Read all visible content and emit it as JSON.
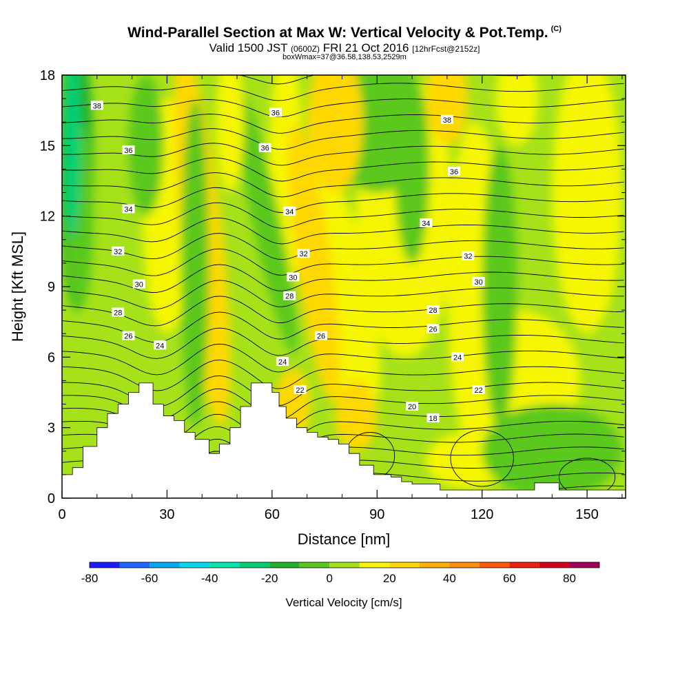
{
  "header": {
    "title": "Wind-Parallel Section at Max W: Vertical Velocity & Pot.Temp.",
    "copyright": "(C)",
    "valid_prefix": "Valid 1500 JST",
    "valid_utc": "(0600Z)",
    "valid_date": "FRI 21 Oct 2016",
    "forecast": "[12hrFcst@2152z]",
    "box_info": "boxWmax=37@36.58,138.53,2529m"
  },
  "chart_data": {
    "type": "heatmap",
    "xlabel": "Distance [nm]",
    "ylabel": "Height [Kft MSL]",
    "xlim": [
      0,
      161
    ],
    "ylim": [
      0,
      18
    ],
    "x_ticks": [
      "0",
      "30",
      "60",
      "90",
      "120",
      "150"
    ],
    "y_ticks": [
      "0",
      "3",
      "6",
      "9",
      "12",
      "15",
      "18"
    ],
    "grid": false,
    "colorbar": {
      "title": "Vertical Velocity [cm/s]",
      "tick_labels": [
        "-80",
        "-60",
        "-40",
        "-20",
        "0",
        "20",
        "40",
        "60",
        "80"
      ],
      "levels": [
        -80,
        -70,
        -60,
        -50,
        -40,
        -30,
        -20,
        -10,
        0,
        10,
        20,
        30,
        40,
        50,
        60,
        70,
        80,
        90
      ],
      "colors": [
        "#1c1cff",
        "#1f66ff",
        "#00aaf0",
        "#00d8f0",
        "#00e6b0",
        "#00d072",
        "#24b02c",
        "#5ac81e",
        "#a6e21a",
        "#f6f600",
        "#ffd800",
        "#ffb000",
        "#ff8c0a",
        "#ff5a0a",
        "#f02010",
        "#d4001c",
        "#a0005a",
        "#6a0a8c"
      ]
    },
    "terrain_kft": [
      [
        0,
        1.0
      ],
      [
        3,
        1.0
      ],
      [
        3,
        1.3
      ],
      [
        6,
        1.3
      ],
      [
        6,
        2.2
      ],
      [
        10,
        2.2
      ],
      [
        10,
        3.0
      ],
      [
        13,
        3.0
      ],
      [
        13,
        3.6
      ],
      [
        16,
        3.6
      ],
      [
        16,
        4.0
      ],
      [
        19,
        4.0
      ],
      [
        19,
        4.5
      ],
      [
        22,
        4.5
      ],
      [
        22,
        4.9
      ],
      [
        26,
        4.9
      ],
      [
        26,
        4.0
      ],
      [
        29,
        4.0
      ],
      [
        29,
        3.5
      ],
      [
        32,
        3.5
      ],
      [
        32,
        3.3
      ],
      [
        35,
        3.3
      ],
      [
        35,
        2.8
      ],
      [
        38,
        2.8
      ],
      [
        38,
        2.5
      ],
      [
        42,
        2.5
      ],
      [
        42,
        1.9
      ],
      [
        45,
        1.9
      ],
      [
        45,
        2.3
      ],
      [
        48,
        2.3
      ],
      [
        48,
        3.0
      ],
      [
        51,
        3.0
      ],
      [
        51,
        3.9
      ],
      [
        54,
        3.9
      ],
      [
        54,
        4.9
      ],
      [
        60,
        4.9
      ],
      [
        60,
        4.5
      ],
      [
        62,
        4.5
      ],
      [
        62,
        3.9
      ],
      [
        64,
        3.9
      ],
      [
        64,
        3.4
      ],
      [
        67,
        3.4
      ],
      [
        67,
        3.0
      ],
      [
        70,
        3.0
      ],
      [
        70,
        2.8
      ],
      [
        73,
        2.8
      ],
      [
        73,
        2.6
      ],
      [
        76,
        2.6
      ],
      [
        76,
        2.5
      ],
      [
        79,
        2.5
      ],
      [
        79,
        2.3
      ],
      [
        82,
        2.3
      ],
      [
        82,
        1.9
      ],
      [
        85,
        1.9
      ],
      [
        85,
        1.4
      ],
      [
        89,
        1.4
      ],
      [
        89,
        1.0
      ],
      [
        94,
        1.0
      ],
      [
        94,
        0.9
      ],
      [
        97,
        0.9
      ],
      [
        97,
        0.7
      ],
      [
        100,
        0.7
      ],
      [
        100,
        0.6
      ],
      [
        108,
        0.6
      ],
      [
        108,
        0.35
      ],
      [
        115,
        0.35
      ],
      [
        115,
        0.35
      ],
      [
        135,
        0.35
      ],
      [
        135,
        0.65
      ],
      [
        142,
        0.65
      ],
      [
        142,
        0.35
      ],
      [
        161,
        0.35
      ]
    ],
    "theta_labels": [
      {
        "text": "38",
        "x": 10,
        "y": 16.7
      },
      {
        "text": "36",
        "x": 19,
        "y": 14.8
      },
      {
        "text": "34",
        "x": 19,
        "y": 12.3
      },
      {
        "text": "32",
        "x": 16,
        "y": 10.5
      },
      {
        "text": "30",
        "x": 22,
        "y": 9.1
      },
      {
        "text": "28",
        "x": 16,
        "y": 7.9
      },
      {
        "text": "26",
        "x": 19,
        "y": 6.9
      },
      {
        "text": "24",
        "x": 28,
        "y": 6.5
      },
      {
        "text": "36",
        "x": 61,
        "y": 16.4
      },
      {
        "text": "36",
        "x": 58,
        "y": 14.9
      },
      {
        "text": "34",
        "x": 65,
        "y": 12.2
      },
      {
        "text": "32",
        "x": 69,
        "y": 10.4
      },
      {
        "text": "30",
        "x": 66,
        "y": 9.4
      },
      {
        "text": "28",
        "x": 65,
        "y": 8.6
      },
      {
        "text": "26",
        "x": 74,
        "y": 6.9
      },
      {
        "text": "24",
        "x": 63,
        "y": 5.8
      },
      {
        "text": "22",
        "x": 68,
        "y": 4.6
      },
      {
        "text": "38",
        "x": 110,
        "y": 16.1
      },
      {
        "text": "36",
        "x": 112,
        "y": 13.9
      },
      {
        "text": "34",
        "x": 104,
        "y": 11.7
      },
      {
        "text": "32",
        "x": 116,
        "y": 10.3
      },
      {
        "text": "30",
        "x": 119,
        "y": 9.2
      },
      {
        "text": "28",
        "x": 106,
        "y": 8.0
      },
      {
        "text": "26",
        "x": 106,
        "y": 7.2
      },
      {
        "text": "24",
        "x": 113,
        "y": 6.0
      },
      {
        "text": "22",
        "x": 119,
        "y": 4.6
      },
      {
        "text": "20",
        "x": 100,
        "y": 3.9
      },
      {
        "text": "18",
        "x": 106,
        "y": 3.4
      }
    ]
  }
}
